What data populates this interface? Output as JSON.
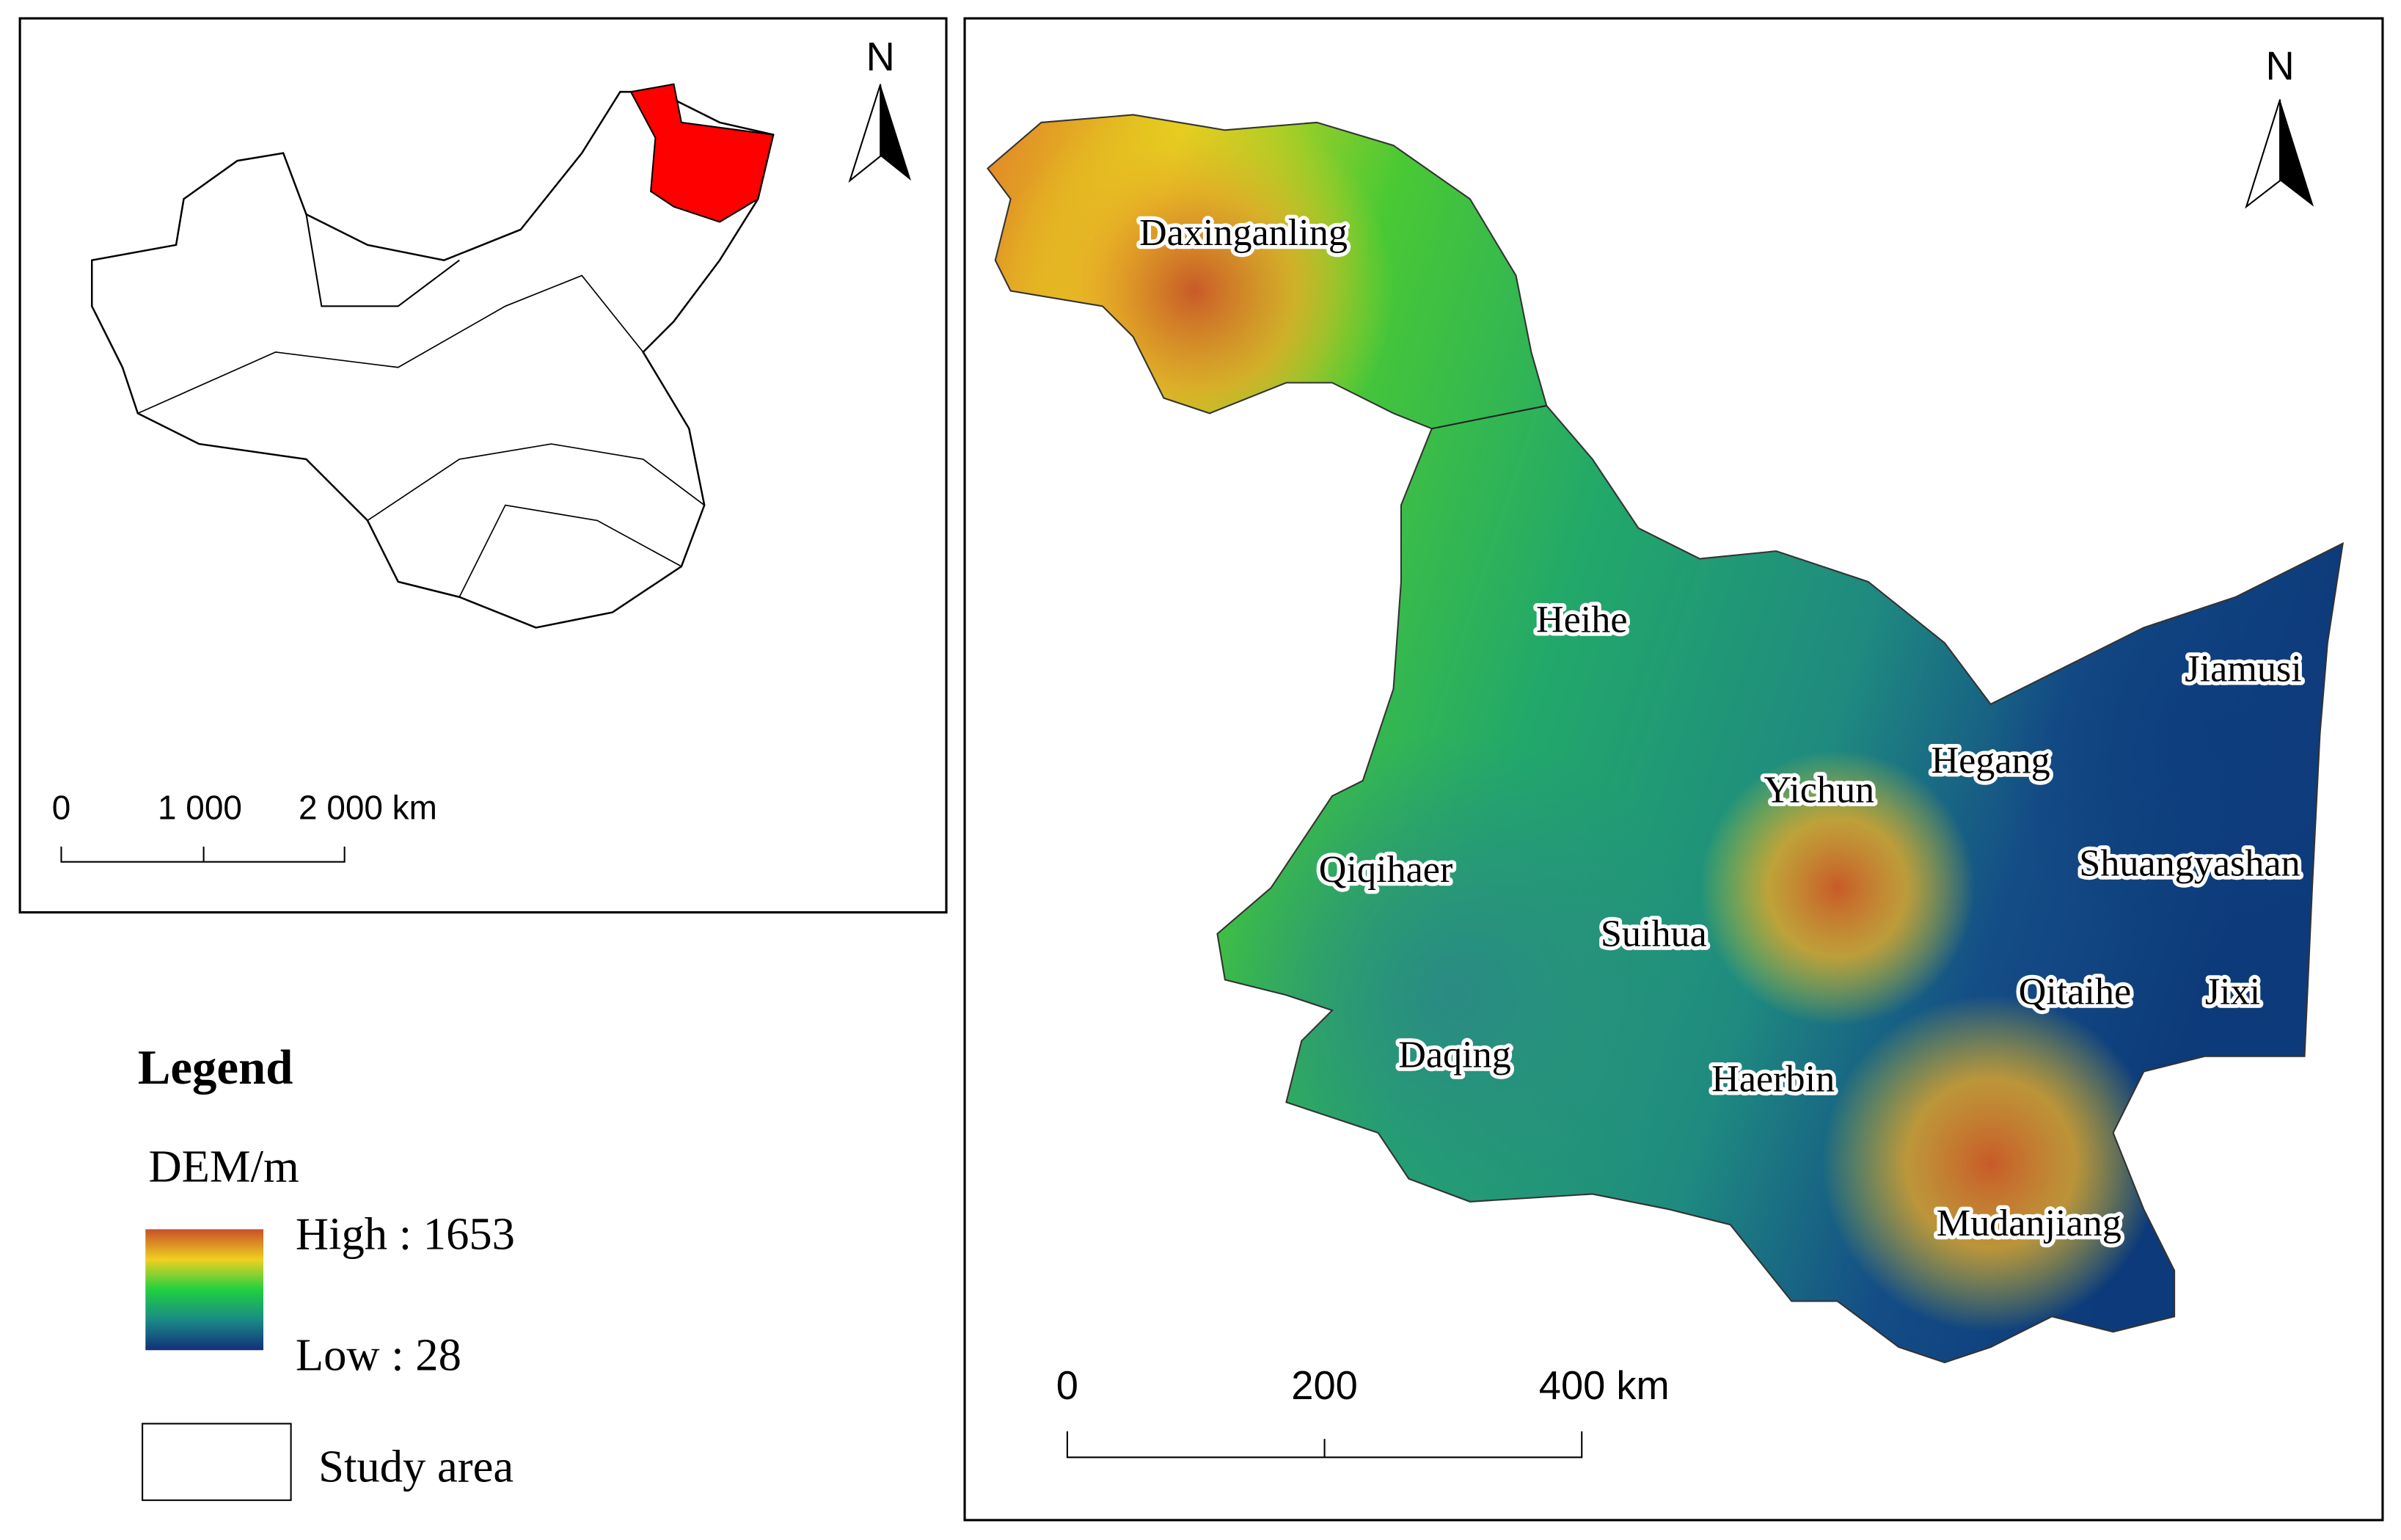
{
  "overview_map": {
    "north_label": "N",
    "scale_labels": [
      "0",
      "1 000",
      "2 000 km"
    ]
  },
  "study_map": {
    "north_label": "N",
    "scale_labels": [
      "0",
      "200",
      "400 km"
    ],
    "cities": [
      "Daxinganling",
      "Heihe",
      "Yichun",
      "Hegang",
      "Jiamusi",
      "Shuangyashan",
      "Qiqihaer",
      "Suihua",
      "Qitaihe",
      "Jixi",
      "Daqing",
      "Haerbin",
      "Mudanjiang"
    ]
  },
  "legend": {
    "title": "Legend",
    "dem_title": "DEM/m",
    "high": "High : 1653",
    "low": "Low : 28",
    "study_area": "Study area"
  }
}
